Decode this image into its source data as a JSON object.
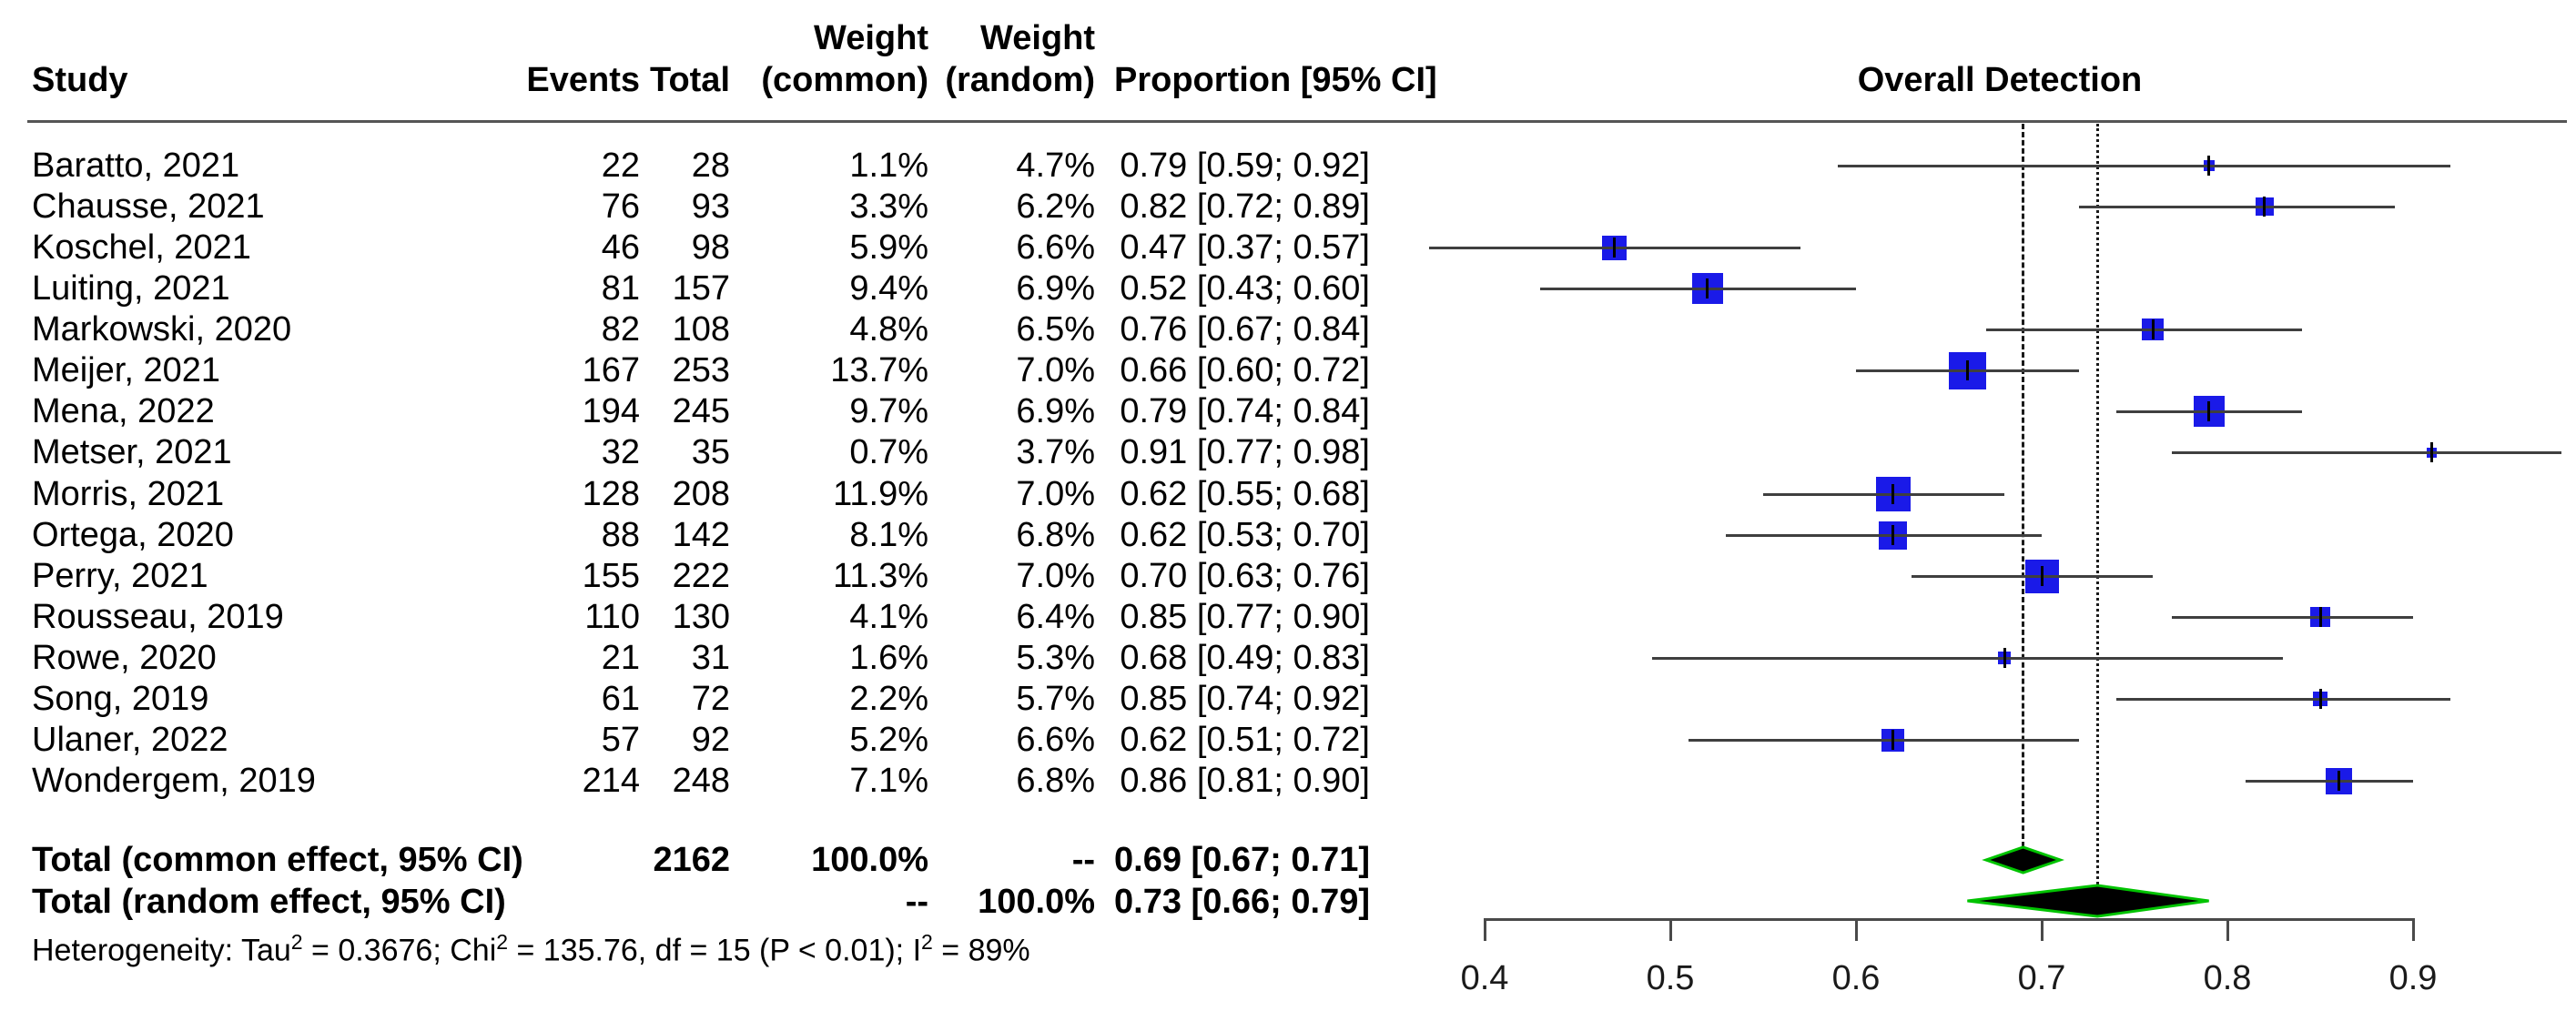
{
  "header": {
    "study": "Study",
    "events": "Events",
    "total": "Total",
    "weight_common_line1": "Weight",
    "weight_common_line2": "(common)",
    "weight_random_line1": "Weight",
    "weight_random_line2": "(random)",
    "proportion": "Proportion [95% CI]",
    "plot_title": "Overall Detection"
  },
  "chart_data": {
    "type": "forest",
    "title": "Overall Detection",
    "xlim": [
      0.4,
      0.9
    ],
    "axis": {
      "tick_labels": [
        "0.4",
        "0.5",
        "0.6",
        "0.7",
        "0.8",
        "0.9"
      ]
    },
    "reference_lines": {
      "common_effect": {
        "value": 0.69,
        "style": "dashed"
      },
      "random_effect": {
        "value": 0.73,
        "style": "dotted"
      }
    },
    "colors": {
      "square": "#1a1ae8",
      "ci_line": "#3f3f3f",
      "diamond_fill": "#000000",
      "diamond_border": "#00c300",
      "ref_line": "#1a1a1a"
    },
    "studies": [
      {
        "study": "Baratto, 2021",
        "events": "22",
        "total": "28",
        "weight_common": "1.1%",
        "weight_random": "4.7%",
        "wc": 1.1,
        "proportion_label": "0.79 [0.59; 0.92]",
        "prop": 0.79,
        "lo": 0.59,
        "hi": 0.92
      },
      {
        "study": "Chausse, 2021",
        "events": "76",
        "total": "93",
        "weight_common": "3.3%",
        "weight_random": "6.2%",
        "wc": 3.3,
        "proportion_label": "0.82 [0.72; 0.89]",
        "prop": 0.82,
        "lo": 0.72,
        "hi": 0.89
      },
      {
        "study": "Koschel, 2021",
        "events": "46",
        "total": "98",
        "weight_common": "5.9%",
        "weight_random": "6.6%",
        "wc": 5.9,
        "proportion_label": "0.47 [0.37; 0.57]",
        "prop": 0.47,
        "lo": 0.37,
        "hi": 0.57
      },
      {
        "study": "Luiting, 2021",
        "events": "81",
        "total": "157",
        "weight_common": "9.4%",
        "weight_random": "6.9%",
        "wc": 9.4,
        "proportion_label": "0.52 [0.43; 0.60]",
        "prop": 0.52,
        "lo": 0.43,
        "hi": 0.6
      },
      {
        "study": "Markowski, 2020",
        "events": "82",
        "total": "108",
        "weight_common": "4.8%",
        "weight_random": "6.5%",
        "wc": 4.8,
        "proportion_label": "0.76 [0.67; 0.84]",
        "prop": 0.76,
        "lo": 0.67,
        "hi": 0.84
      },
      {
        "study": "Meijer, 2021",
        "events": "167",
        "total": "253",
        "weight_common": "13.7%",
        "weight_random": "7.0%",
        "wc": 13.7,
        "proportion_label": "0.66 [0.60; 0.72]",
        "prop": 0.66,
        "lo": 0.6,
        "hi": 0.72
      },
      {
        "study": "Mena, 2022",
        "events": "194",
        "total": "245",
        "weight_common": "9.7%",
        "weight_random": "6.9%",
        "wc": 9.7,
        "proportion_label": "0.79 [0.74; 0.84]",
        "prop": 0.79,
        "lo": 0.74,
        "hi": 0.84
      },
      {
        "study": "Metser, 2021",
        "events": "32",
        "total": "35",
        "weight_common": "0.7%",
        "weight_random": "3.7%",
        "wc": 0.7,
        "proportion_label": "0.91 [0.77; 0.98]",
        "prop": 0.91,
        "lo": 0.77,
        "hi": 0.98
      },
      {
        "study": "Morris, 2021",
        "events": "128",
        "total": "208",
        "weight_common": "11.9%",
        "weight_random": "7.0%",
        "wc": 11.9,
        "proportion_label": "0.62 [0.55; 0.68]",
        "prop": 0.62,
        "lo": 0.55,
        "hi": 0.68
      },
      {
        "study": "Ortega, 2020",
        "events": "88",
        "total": "142",
        "weight_common": "8.1%",
        "weight_random": "6.8%",
        "wc": 8.1,
        "proportion_label": "0.62 [0.53; 0.70]",
        "prop": 0.62,
        "lo": 0.53,
        "hi": 0.7
      },
      {
        "study": "Perry, 2021",
        "events": "155",
        "total": "222",
        "weight_common": "11.3%",
        "weight_random": "7.0%",
        "wc": 11.3,
        "proportion_label": "0.70 [0.63; 0.76]",
        "prop": 0.7,
        "lo": 0.63,
        "hi": 0.76
      },
      {
        "study": "Rousseau, 2019",
        "events": "110",
        "total": "130",
        "weight_common": "4.1%",
        "weight_random": "6.4%",
        "wc": 4.1,
        "proportion_label": "0.85 [0.77; 0.90]",
        "prop": 0.85,
        "lo": 0.77,
        "hi": 0.9
      },
      {
        "study": "Rowe, 2020",
        "events": "21",
        "total": "31",
        "weight_common": "1.6%",
        "weight_random": "5.3%",
        "wc": 1.6,
        "proportion_label": "0.68 [0.49; 0.83]",
        "prop": 0.68,
        "lo": 0.49,
        "hi": 0.83
      },
      {
        "study": "Song, 2019",
        "events": "61",
        "total": "72",
        "weight_common": "2.2%",
        "weight_random": "5.7%",
        "wc": 2.2,
        "proportion_label": "0.85 [0.74; 0.92]",
        "prop": 0.85,
        "lo": 0.74,
        "hi": 0.92
      },
      {
        "study": "Ulaner, 2022",
        "events": "57",
        "total": "92",
        "weight_common": "5.2%",
        "weight_random": "6.6%",
        "wc": 5.2,
        "proportion_label": "0.62 [0.51; 0.72]",
        "prop": 0.62,
        "lo": 0.51,
        "hi": 0.72
      },
      {
        "study": "Wondergem, 2019",
        "events": "214",
        "total": "248",
        "weight_common": "7.1%",
        "weight_random": "6.8%",
        "wc": 7.1,
        "proportion_label": "0.86 [0.81; 0.90]",
        "prop": 0.86,
        "lo": 0.81,
        "hi": 0.9
      }
    ],
    "totals": [
      {
        "label": "Total (common effect, 95% CI)",
        "events": "",
        "total": "2162",
        "weight_common": "100.0%",
        "weight_random": "--",
        "proportion_label": "0.69 [0.67; 0.71]",
        "prop": 0.69,
        "lo": 0.67,
        "hi": 0.71
      },
      {
        "label": "Total (random effect, 95% CI)",
        "events": "",
        "total": "",
        "weight_common": "--",
        "weight_random": "100.0%",
        "proportion_label": "0.73 [0.66; 0.79]",
        "prop": 0.73,
        "lo": 0.66,
        "hi": 0.79
      }
    ],
    "heterogeneity": {
      "p1": "Heterogeneity: Tau",
      "s1": "2",
      "p2": " = 0.3676; Chi",
      "s2": "2",
      "p3": " = 135.76, df = 15 (P < 0.01); I",
      "s3": "2",
      "p4": " = 89%"
    }
  }
}
